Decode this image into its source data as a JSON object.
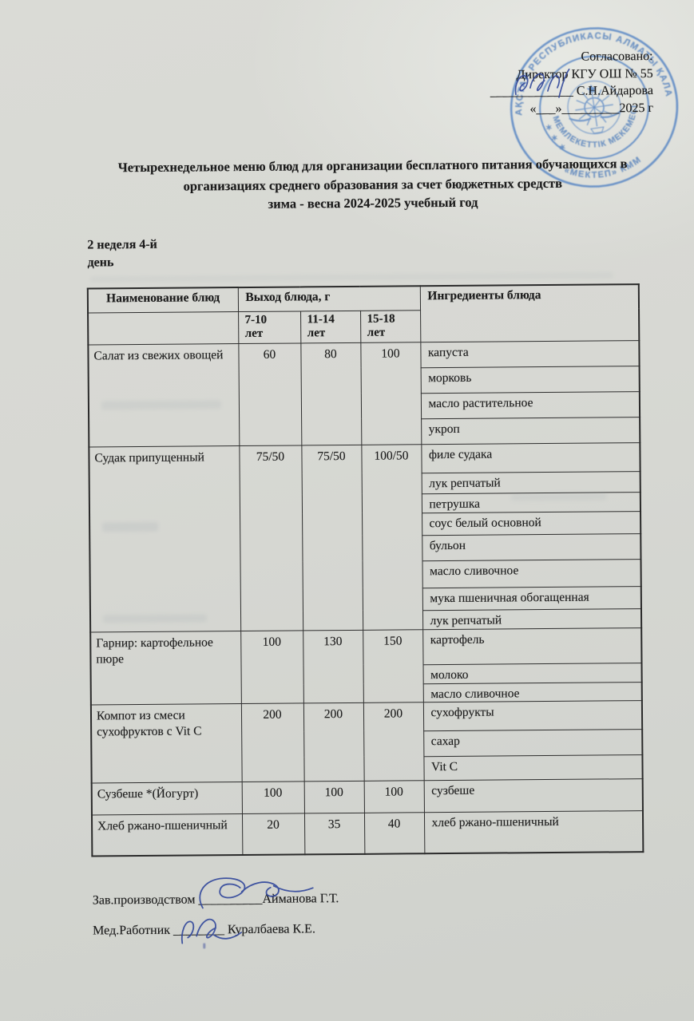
{
  "approval": {
    "agreed_label": "Согласовано:",
    "director_line": "Директор КГУ ОШ № 55",
    "signature_blank": "_____________",
    "director_name": "С.Н.Айдарова",
    "date_line": "«___»_________2025 г"
  },
  "stamp": {
    "ring_top": "ҚАЗАҚСТАН РЕСПУБЛИКАСЫ АЛМАТЫ ҚАЛАСЫ",
    "ring_bottom": "«МЕКТЕП» КММ",
    "inner_ring": "МЕМЛЕКЕТТІК МЕКЕМЕСІ",
    "stars": "✶",
    "color": "#4f80c2"
  },
  "title": {
    "line1": "Четырехнедельное меню блюд для организации бесплатного питания обучающихся в",
    "line2": "организациях среднего образования за счет бюджетных средств",
    "line3": "зима - весна 2024-2025 учебный год"
  },
  "subtitle": "2 неделя 4-й\nдень",
  "menu_table": {
    "headers": {
      "name": "Наименование блюд",
      "output": "Выход блюда, г",
      "ingredients": "Ингредиенты блюда"
    },
    "age_groups": [
      "7-10\nлет",
      "11-14\nлет",
      "15-18\nлет"
    ],
    "rows": [
      {
        "dish": "Салат из свежих овощей",
        "portions": [
          "60",
          "80",
          "100"
        ],
        "ingredients": [
          "капуста",
          "морковь",
          "масло растительное",
          "укроп"
        ]
      },
      {
        "dish": "Судак припущенный",
        "portions": [
          "75/50",
          "75/50",
          "100/50"
        ],
        "ingredients": [
          "филе судака",
          "лук репчатый",
          "петрушка",
          "соус белый основной",
          "бульон",
          "масло сливочное",
          "мука пшеничная обогащенная",
          "лук репчатый"
        ]
      },
      {
        "dish": "Гарнир:  картофельное пюре",
        "portions": [
          "100",
          "130",
          "150"
        ],
        "ingredients": [
          "картофель",
          "молоко",
          "масло сливочное"
        ]
      },
      {
        "dish": "Компот из смеси сухофруктов с Vit C",
        "portions": [
          "200",
          "200",
          "200"
        ],
        "ingredients": [
          "сухофрукты",
          "сахар",
          "Vit C"
        ]
      },
      {
        "dish": "Сузбеше *(Йогурт)",
        "portions": [
          "100",
          "100",
          "100"
        ],
        "ingredients": [
          "сузбеше"
        ]
      },
      {
        "dish": "Хлеб ржано-пшеничный",
        "portions": [
          "20",
          "35",
          "40"
        ],
        "ingredients": [
          "хлеб ржано-пшеничный"
        ]
      }
    ]
  },
  "signatures": [
    {
      "role": "Зав.производством",
      "line": "__________",
      "name": "Айманова Г.Т."
    },
    {
      "role": "Мед.Работник",
      "line": "________",
      "name": "Куралбаева К.Е."
    }
  ]
}
